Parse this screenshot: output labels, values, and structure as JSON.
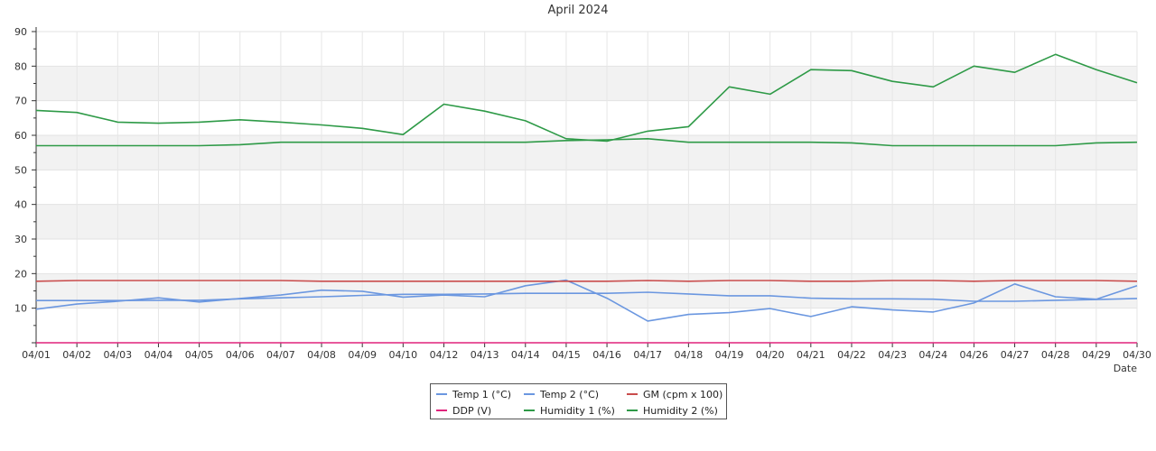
{
  "chart_data": {
    "type": "line",
    "title": "April 2024",
    "xlabel": "Date",
    "ylabel": "",
    "ylim": [
      0,
      90
    ],
    "yticks": [
      10,
      20,
      30,
      40,
      50,
      60,
      70,
      80,
      90
    ],
    "grid": true,
    "legend_position": "bottom-center",
    "categories": [
      "04/01",
      "04/02",
      "04/03",
      "04/04",
      "04/05",
      "04/06",
      "04/07",
      "04/08",
      "04/09",
      "04/10",
      "04/12",
      "04/13",
      "04/14",
      "04/15",
      "04/16",
      "04/17",
      "04/18",
      "04/19",
      "04/20",
      "04/21",
      "04/22",
      "04/23",
      "04/24",
      "04/26",
      "04/27",
      "04/28",
      "04/29",
      "04/30"
    ],
    "series": [
      {
        "name": "Temp 1 (°C)",
        "color": "#6b97e0",
        "values": [
          12.2,
          12.2,
          12.2,
          12.3,
          12.3,
          12.7,
          13.0,
          13.3,
          13.7,
          14.0,
          14.0,
          14.1,
          14.3,
          14.3,
          14.3,
          14.6,
          14.1,
          13.6,
          13.6,
          12.9,
          12.7,
          12.7,
          12.6,
          12.0,
          12.0,
          12.3,
          12.5,
          12.8
        ]
      },
      {
        "name": "Temp 2 (°C)",
        "color": "#6b97e0",
        "values": [
          9.7,
          11.2,
          12.0,
          13.0,
          11.8,
          12.8,
          13.8,
          15.2,
          14.9,
          13.2,
          13.8,
          13.3,
          16.5,
          18.1,
          12.9,
          6.3,
          8.2,
          8.7,
          9.9,
          7.6,
          10.4,
          9.5,
          8.9,
          11.5,
          17.0,
          13.3,
          12.6,
          16.5
        ]
      },
      {
        "name": "GM (cpm x 100)",
        "color": "#c94c4c",
        "values": [
          17.8,
          18.0,
          18.0,
          18.0,
          18.0,
          18.0,
          18.0,
          17.8,
          17.8,
          17.8,
          17.8,
          17.8,
          17.8,
          17.8,
          17.8,
          18.0,
          17.8,
          18.0,
          18.0,
          17.8,
          17.8,
          18.0,
          18.0,
          17.8,
          18.0,
          18.0,
          18.0,
          17.8
        ]
      },
      {
        "name": "DDP (V)",
        "color": "#e0247c",
        "values": [
          0,
          0,
          0,
          0,
          0,
          0,
          0,
          0,
          0,
          0,
          0,
          0,
          0,
          0,
          0,
          0,
          0,
          0,
          0,
          0,
          0,
          0,
          0,
          0,
          0,
          0,
          0,
          0
        ]
      },
      {
        "name": "Humidity 1 (%)",
        "color": "#2e9a47",
        "values": [
          67.2,
          66.6,
          63.8,
          63.5,
          63.8,
          64.5,
          63.8,
          63.0,
          62.0,
          60.2,
          69.0,
          67.0,
          64.2,
          59.0,
          58.3,
          61.2,
          62.5,
          74.0,
          71.9,
          79.0,
          78.7,
          75.6,
          74.0,
          80.0,
          78.2,
          83.4,
          79.0,
          75.2
        ]
      },
      {
        "name": "Humidity 2 (%)",
        "color": "#2e9a47",
        "values": [
          57.0,
          57.0,
          57.0,
          57.0,
          57.0,
          57.3,
          58.0,
          58.0,
          58.0,
          58.0,
          58.0,
          58.0,
          58.0,
          58.5,
          58.7,
          59.0,
          58.0,
          58.0,
          58.0,
          58.0,
          57.8,
          57.0,
          57.0,
          57.0,
          57.0,
          57.0,
          57.8,
          58.0
        ]
      }
    ]
  }
}
